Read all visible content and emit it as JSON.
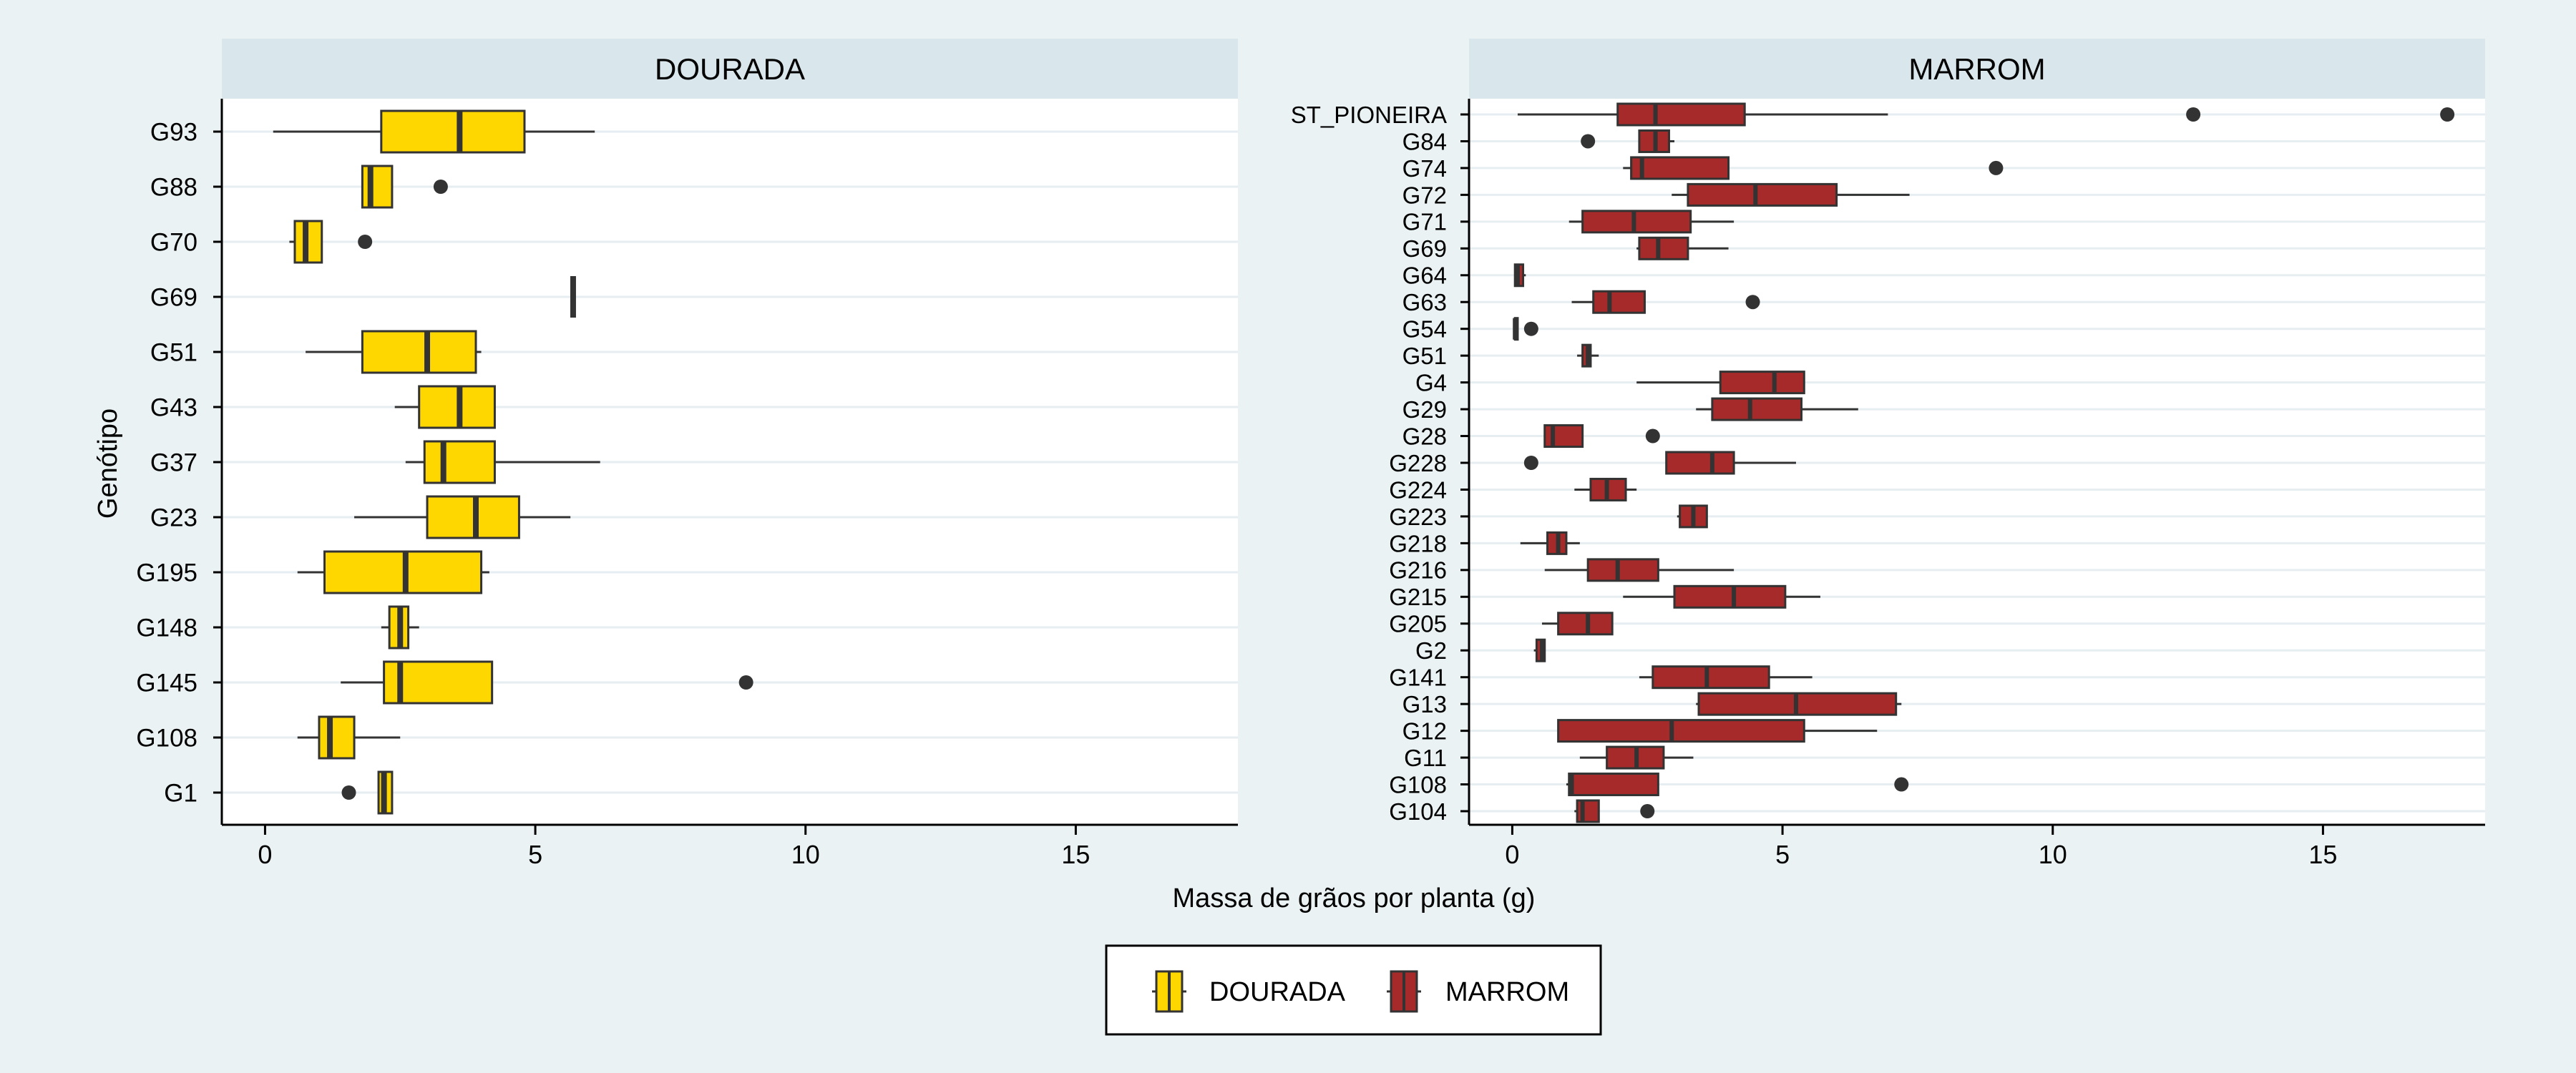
{
  "chart_data": {
    "type": "box",
    "orientation": "horizontal",
    "xlabel": "Massa de grãos por planta (g)",
    "ylabel": "Genótipo",
    "xlim": [
      -0.8,
      18
    ],
    "xticks": [
      0,
      5,
      10,
      15
    ],
    "grid": true,
    "legend_position": "bottom",
    "colors": {
      "DOURADA": "#ffd700",
      "MARROM": "#a62a2a",
      "outline": "#333333"
    },
    "legend": [
      "DOURADA",
      "MARROM"
    ],
    "panels": [
      {
        "title": "DOURADA",
        "series": "DOURADA",
        "categories": [
          "G93",
          "G88",
          "G70",
          "G69",
          "G51",
          "G43",
          "G37",
          "G23",
          "G195",
          "G148",
          "G145",
          "G108",
          "G1"
        ],
        "boxes": [
          {
            "min": 0.15,
            "q1": 2.15,
            "median": 3.6,
            "q3": 4.8,
            "max": 6.1,
            "outliers": []
          },
          {
            "min": 1.8,
            "q1": 1.8,
            "median": 1.95,
            "q3": 2.35,
            "max": 2.35,
            "outliers": [
              3.25
            ]
          },
          {
            "min": 0.45,
            "q1": 0.55,
            "median": 0.75,
            "q3": 1.05,
            "max": 1.05,
            "outliers": [
              1.85
            ]
          },
          {
            "min": 5.7,
            "q1": 5.7,
            "median": 5.7,
            "q3": 5.7,
            "max": 5.7,
            "outliers": []
          },
          {
            "min": 0.75,
            "q1": 1.8,
            "median": 3.0,
            "q3": 3.9,
            "max": 4.0,
            "outliers": []
          },
          {
            "min": 2.4,
            "q1": 2.85,
            "median": 3.6,
            "q3": 4.25,
            "max": 4.25,
            "outliers": []
          },
          {
            "min": 2.6,
            "q1": 2.95,
            "median": 3.3,
            "q3": 4.25,
            "max": 6.2,
            "outliers": []
          },
          {
            "min": 1.65,
            "q1": 3.0,
            "median": 3.9,
            "q3": 4.7,
            "max": 5.65,
            "outliers": []
          },
          {
            "min": 0.6,
            "q1": 1.1,
            "median": 2.6,
            "q3": 4.0,
            "max": 4.15,
            "outliers": []
          },
          {
            "min": 2.15,
            "q1": 2.3,
            "median": 2.5,
            "q3": 2.65,
            "max": 2.85,
            "outliers": []
          },
          {
            "min": 1.4,
            "q1": 2.2,
            "median": 2.5,
            "q3": 4.2,
            "max": 4.2,
            "outliers": [
              8.9
            ]
          },
          {
            "min": 0.6,
            "q1": 1.0,
            "median": 1.2,
            "q3": 1.65,
            "max": 2.5,
            "outliers": []
          },
          {
            "min": 2.1,
            "q1": 2.1,
            "median": 2.2,
            "q3": 2.35,
            "max": 2.35,
            "outliers": [
              1.55
            ]
          }
        ]
      },
      {
        "title": "MARROM",
        "series": "MARROM",
        "categories": [
          "ST_PIONEIRA",
          "G84",
          "G74",
          "G72",
          "G71",
          "G69",
          "G64",
          "G63",
          "G54",
          "G51",
          "G4",
          "G29",
          "G28",
          "G228",
          "G224",
          "G223",
          "G218",
          "G216",
          "G215",
          "G205",
          "G2",
          "G141",
          "G13",
          "G12",
          "G11",
          "G108",
          "G104"
        ],
        "boxes": [
          {
            "min": 0.1,
            "q1": 1.95,
            "median": 2.65,
            "q3": 4.3,
            "max": 6.95,
            "outliers": [
              12.6,
              17.3
            ]
          },
          {
            "min": 2.35,
            "q1": 2.35,
            "median": 2.65,
            "q3": 2.9,
            "max": 3.0,
            "outliers": [
              1.4
            ]
          },
          {
            "min": 2.05,
            "q1": 2.2,
            "median": 2.4,
            "q3": 4.0,
            "max": 4.0,
            "outliers": [
              8.95
            ]
          },
          {
            "min": 2.95,
            "q1": 3.25,
            "median": 4.5,
            "q3": 6.0,
            "max": 7.35,
            "outliers": []
          },
          {
            "min": 1.05,
            "q1": 1.3,
            "median": 2.25,
            "q3": 3.3,
            "max": 4.1,
            "outliers": []
          },
          {
            "min": 2.3,
            "q1": 2.35,
            "median": 2.7,
            "q3": 3.25,
            "max": 4.0,
            "outliers": []
          },
          {
            "min": 0.05,
            "q1": 0.05,
            "median": 0.1,
            "q3": 0.2,
            "max": 0.25,
            "outliers": []
          },
          {
            "min": 1.1,
            "q1": 1.5,
            "median": 1.8,
            "q3": 2.45,
            "max": 2.45,
            "outliers": [
              4.45
            ]
          },
          {
            "min": 0.05,
            "q1": 0.05,
            "median": 0.05,
            "q3": 0.1,
            "max": 0.1,
            "outliers": [
              0.35
            ]
          },
          {
            "min": 1.2,
            "q1": 1.3,
            "median": 1.4,
            "q3": 1.45,
            "max": 1.6,
            "outliers": []
          },
          {
            "min": 2.3,
            "q1": 3.85,
            "median": 4.85,
            "q3": 5.4,
            "max": 5.4,
            "outliers": []
          },
          {
            "min": 3.4,
            "q1": 3.7,
            "median": 4.4,
            "q3": 5.35,
            "max": 6.4,
            "outliers": []
          },
          {
            "min": 0.6,
            "q1": 0.6,
            "median": 0.75,
            "q3": 1.3,
            "max": 1.3,
            "outliers": [
              2.6
            ]
          },
          {
            "min": 2.85,
            "q1": 2.85,
            "median": 3.7,
            "q3": 4.1,
            "max": 5.25,
            "outliers": [
              0.35
            ]
          },
          {
            "min": 1.15,
            "q1": 1.45,
            "median": 1.75,
            "q3": 2.1,
            "max": 2.3,
            "outliers": []
          },
          {
            "min": 3.05,
            "q1": 3.1,
            "median": 3.35,
            "q3": 3.6,
            "max": 3.6,
            "outliers": []
          },
          {
            "min": 0.15,
            "q1": 0.65,
            "median": 0.85,
            "q3": 1.0,
            "max": 1.25,
            "outliers": []
          },
          {
            "min": 0.6,
            "q1": 1.4,
            "median": 1.95,
            "q3": 2.7,
            "max": 4.1,
            "outliers": []
          },
          {
            "min": 2.05,
            "q1": 3.0,
            "median": 4.1,
            "q3": 5.05,
            "max": 5.7,
            "outliers": []
          },
          {
            "min": 0.55,
            "q1": 0.85,
            "median": 1.4,
            "q3": 1.85,
            "max": 1.85,
            "outliers": []
          },
          {
            "min": 0.4,
            "q1": 0.45,
            "median": 0.55,
            "q3": 0.6,
            "max": 0.6,
            "outliers": []
          },
          {
            "min": 2.35,
            "q1": 2.6,
            "median": 3.6,
            "q3": 4.75,
            "max": 5.55,
            "outliers": []
          },
          {
            "min": 3.4,
            "q1": 3.45,
            "median": 5.25,
            "q3": 7.1,
            "max": 7.2,
            "outliers": []
          },
          {
            "min": 0.85,
            "q1": 0.85,
            "median": 2.95,
            "q3": 5.4,
            "max": 6.75,
            "outliers": []
          },
          {
            "min": 1.25,
            "q1": 1.75,
            "median": 2.3,
            "q3": 2.8,
            "max": 3.35,
            "outliers": []
          },
          {
            "min": 1.0,
            "q1": 1.05,
            "median": 1.1,
            "q3": 2.7,
            "max": 2.7,
            "outliers": [
              7.2
            ]
          },
          {
            "min": 1.15,
            "q1": 1.2,
            "median": 1.3,
            "q3": 1.6,
            "max": 1.6,
            "outliers": [
              2.5
            ]
          }
        ]
      }
    ]
  }
}
